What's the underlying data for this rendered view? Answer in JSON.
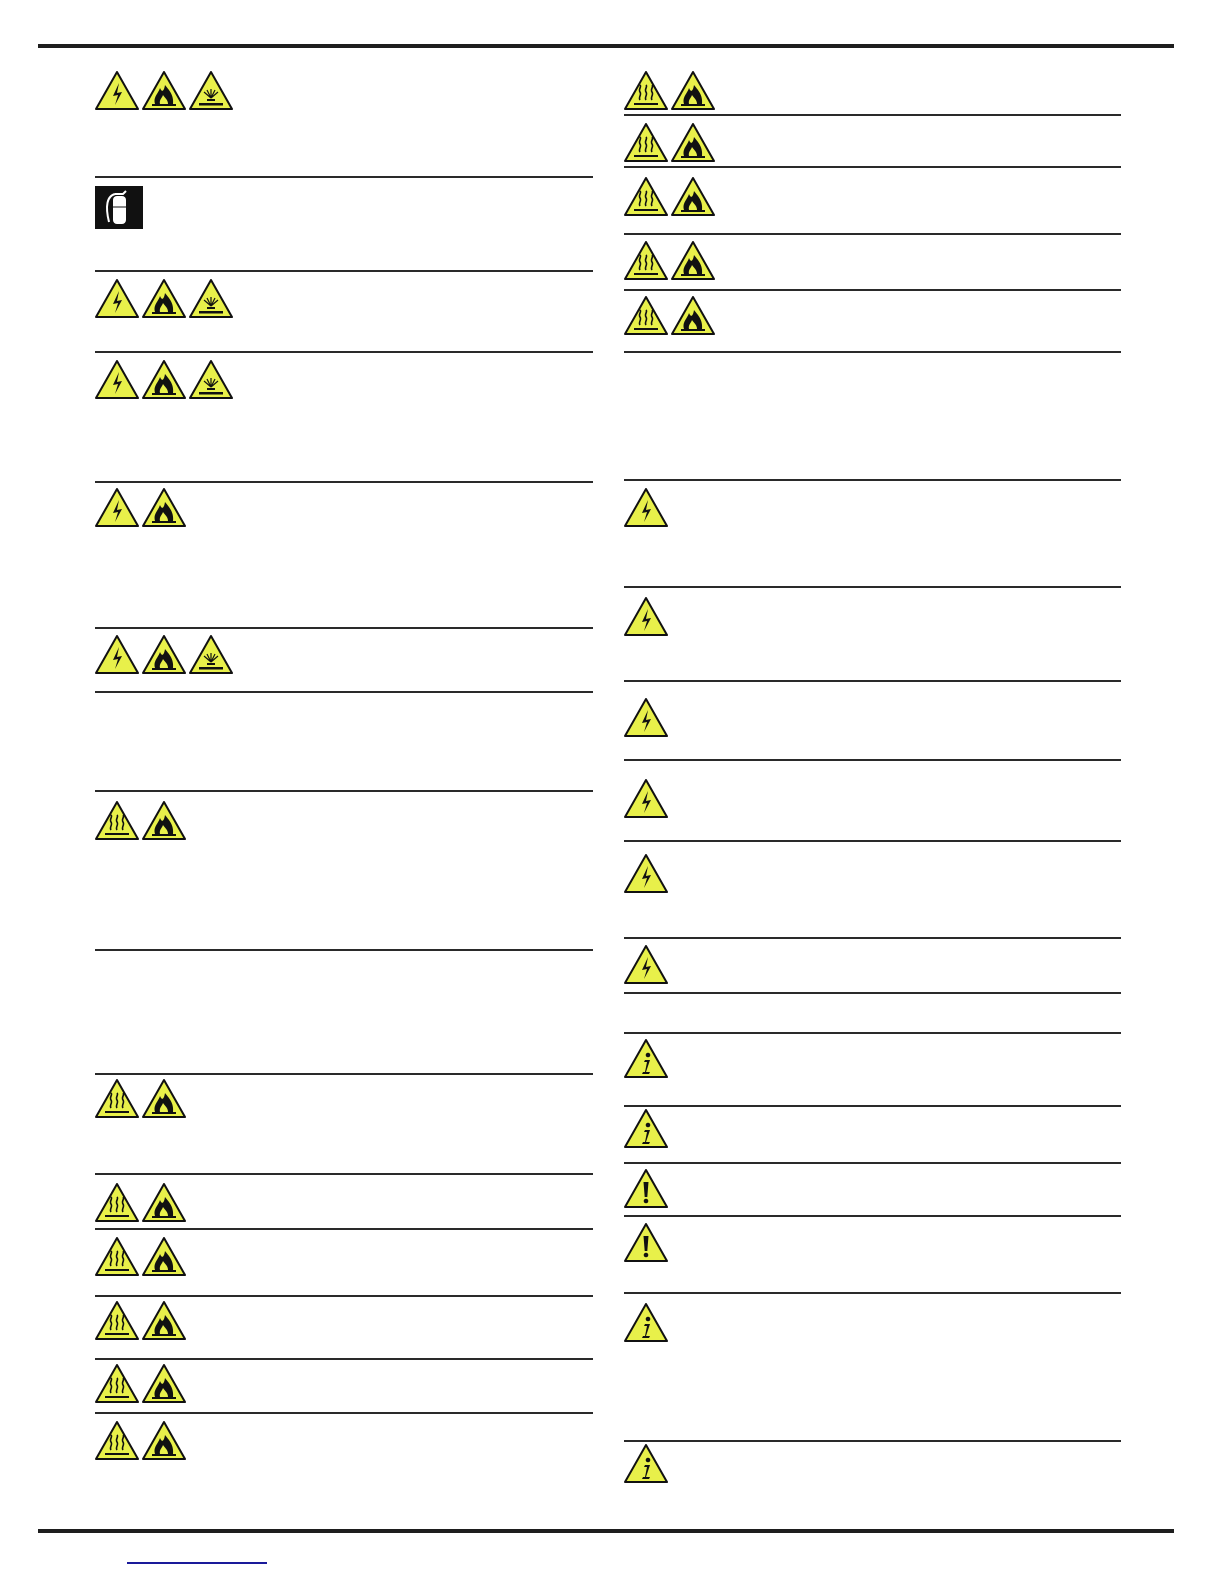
{
  "colors": {
    "warning_yellow": "#e8f04a",
    "rule": "#1e1e1e",
    "link": "#1a1a9a"
  },
  "left_rows": [
    {
      "icons": [
        "electric-hazard",
        "fire-hazard",
        "corrosive-hazard"
      ]
    },
    {
      "icons": [
        "fire-extinguisher"
      ]
    },
    {
      "icons": [
        "electric-hazard",
        "fire-hazard",
        "corrosive-hazard"
      ]
    },
    {
      "icons": [
        "electric-hazard",
        "fire-hazard",
        "corrosive-hazard"
      ]
    },
    {
      "icons": [
        "electric-hazard",
        "fire-hazard"
      ]
    },
    {
      "icons": [
        "electric-hazard",
        "fire-hazard",
        "corrosive-hazard"
      ]
    },
    {
      "icons": []
    },
    {
      "icons": [
        "hot-surface",
        "fire-hazard"
      ]
    },
    {
      "icons": []
    },
    {
      "icons": [
        "hot-surface",
        "fire-hazard"
      ]
    },
    {
      "icons": [
        "hot-surface",
        "fire-hazard"
      ]
    },
    {
      "icons": [
        "hot-surface",
        "fire-hazard"
      ]
    },
    {
      "icons": [
        "hot-surface",
        "fire-hazard"
      ]
    },
    {
      "icons": [
        "hot-surface",
        "fire-hazard"
      ]
    },
    {
      "icons": [
        "hot-surface",
        "fire-hazard"
      ]
    }
  ],
  "right_rows": [
    {
      "icons": [
        "hot-surface",
        "fire-hazard"
      ]
    },
    {
      "icons": [
        "hot-surface",
        "fire-hazard"
      ]
    },
    {
      "icons": [
        "hot-surface",
        "fire-hazard"
      ]
    },
    {
      "icons": [
        "hot-surface",
        "fire-hazard"
      ]
    },
    {
      "icons": [
        "hot-surface",
        "fire-hazard"
      ]
    },
    {
      "icons": []
    },
    {
      "icons": [
        "electric-hazard"
      ]
    },
    {
      "icons": [
        "electric-hazard"
      ]
    },
    {
      "icons": [
        "electric-hazard"
      ]
    },
    {
      "icons": [
        "electric-hazard"
      ]
    },
    {
      "icons": [
        "electric-hazard"
      ]
    },
    {
      "icons": [
        "electric-hazard"
      ]
    },
    {
      "icons": []
    },
    {
      "icons": [
        "information"
      ]
    },
    {
      "icons": [
        "information"
      ]
    },
    {
      "icons": [
        "general-warning"
      ]
    },
    {
      "icons": [
        "general-warning"
      ]
    },
    {
      "icons": [
        "information"
      ]
    },
    {
      "icons": [
        "information"
      ]
    }
  ]
}
